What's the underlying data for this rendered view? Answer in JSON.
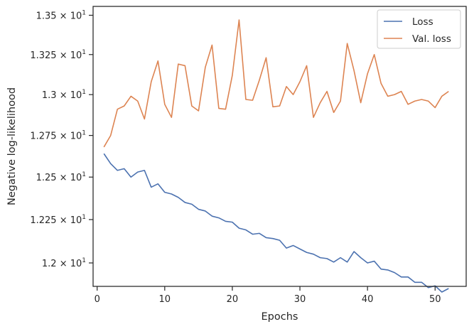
{
  "chart_data": {
    "type": "line",
    "title": "",
    "xlabel": "Epochs",
    "ylabel": "Negative log-likelihood",
    "xlim": [
      -0.6,
      54.6
    ],
    "ylim": [
      11.867,
      13.557
    ],
    "y_scale": "log",
    "grid": false,
    "legend_position": "top-right",
    "x_ticks": [
      0,
      10,
      20,
      30,
      40,
      50
    ],
    "x_tick_labels": [
      "0",
      "10",
      "20",
      "30",
      "40",
      "50"
    ],
    "y_ticks": [
      12.0,
      12.25,
      12.5,
      12.75,
      13.0,
      13.25,
      13.5
    ],
    "y_tick_labels": [
      {
        "mantissa": "1.2",
        "times": "×",
        "base": "10",
        "exp": "1"
      },
      {
        "mantissa": "1.225",
        "times": "×",
        "base": "10",
        "exp": "1"
      },
      {
        "mantissa": "1.25",
        "times": "×",
        "base": "10",
        "exp": "1"
      },
      {
        "mantissa": "1.275",
        "times": "×",
        "base": "10",
        "exp": "1"
      },
      {
        "mantissa": "1.3",
        "times": "×",
        "base": "10",
        "exp": "1"
      },
      {
        "mantissa": "1.325",
        "times": "×",
        "base": "10",
        "exp": "1"
      },
      {
        "mantissa": "1.35",
        "times": "×",
        "base": "10",
        "exp": "1"
      }
    ],
    "x": [
      1,
      2,
      3,
      4,
      5,
      6,
      7,
      8,
      9,
      10,
      11,
      12,
      13,
      14,
      15,
      16,
      17,
      18,
      19,
      20,
      21,
      22,
      23,
      24,
      25,
      26,
      27,
      28,
      29,
      30,
      31,
      32,
      33,
      34,
      35,
      36,
      37,
      38,
      39,
      40,
      41,
      42,
      43,
      44,
      45,
      46,
      47,
      48,
      49,
      50,
      51,
      52
    ],
    "series": [
      {
        "name": "Loss",
        "color": "#4c72b0",
        "values": [
          12.64,
          12.58,
          12.54,
          12.55,
          12.5,
          12.53,
          12.54,
          12.44,
          12.46,
          12.41,
          12.4,
          12.38,
          12.35,
          12.34,
          12.31,
          12.3,
          12.27,
          12.26,
          12.24,
          12.235,
          12.2,
          12.19,
          12.165,
          12.17,
          12.145,
          12.14,
          12.13,
          12.085,
          12.1,
          12.08,
          12.06,
          12.05,
          12.03,
          12.025,
          12.005,
          12.03,
          12.005,
          12.065,
          12.03,
          12.0,
          12.01,
          11.965,
          11.96,
          11.945,
          11.92,
          11.92,
          11.89,
          11.89,
          11.86,
          11.87,
          11.835,
          11.855
        ]
      },
      {
        "name": "Val. loss",
        "color": "#dd8452",
        "values": [
          12.68,
          12.75,
          12.91,
          12.93,
          12.99,
          12.96,
          12.85,
          13.08,
          13.21,
          12.94,
          12.86,
          13.19,
          13.18,
          12.93,
          12.9,
          13.17,
          13.31,
          12.915,
          12.91,
          13.12,
          13.47,
          12.97,
          12.965,
          13.09,
          13.23,
          12.925,
          12.93,
          13.05,
          13.0,
          13.08,
          13.18,
          12.86,
          12.95,
          13.02,
          12.89,
          12.96,
          13.32,
          13.15,
          12.95,
          13.13,
          13.25,
          13.07,
          12.99,
          13.0,
          13.02,
          12.94,
          12.96,
          12.97,
          12.96,
          12.92,
          12.99,
          13.02
        ]
      }
    ]
  }
}
